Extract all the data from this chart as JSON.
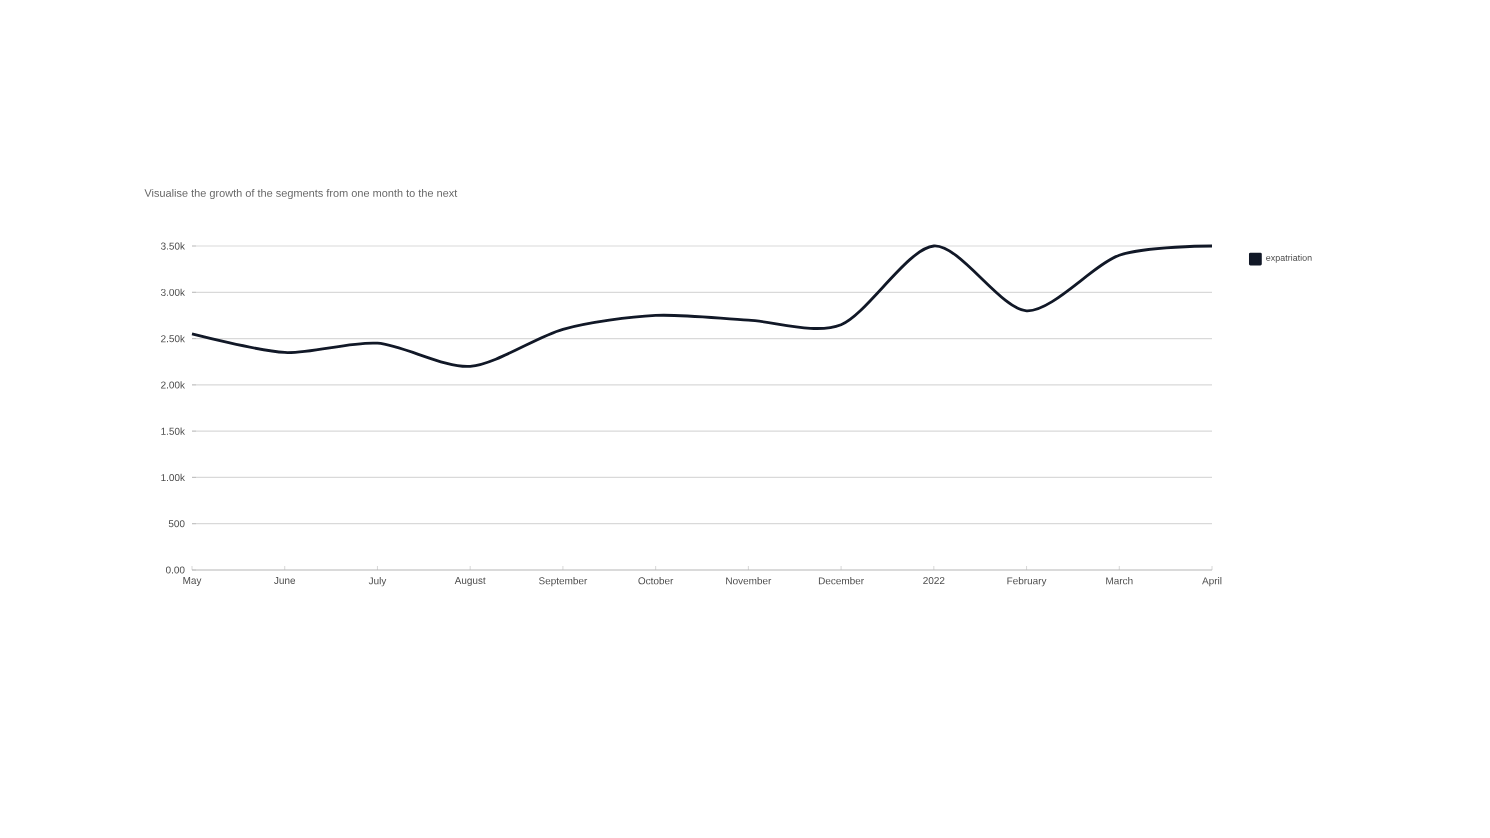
{
  "chart_data": {
    "type": "line",
    "title": "Visualise the growth of the segments from one month to the next",
    "categories": [
      "May",
      "June",
      "July",
      "August",
      "September",
      "October",
      "November",
      "December",
      "2022",
      "February",
      "March",
      "April"
    ],
    "series": [
      {
        "name": "expatriation",
        "color": "#111827",
        "values": [
          2550,
          2350,
          2450,
          2200,
          2600,
          2750,
          2700,
          2650,
          3500,
          2800,
          3400,
          3500
        ]
      }
    ],
    "ylim": [
      0,
      3500
    ],
    "yticks": [
      {
        "value": 0,
        "label": "0.00"
      },
      500,
      {
        "value": 1000,
        "label": "1.00k"
      },
      {
        "value": 1500,
        "label": "1.50k"
      },
      {
        "value": 2000,
        "label": "2.00k"
      },
      {
        "value": 2500,
        "label": "2.50k"
      },
      {
        "value": 3000,
        "label": "3.00k"
      },
      {
        "value": 3500,
        "label": "3.50k"
      }
    ],
    "grid": "y",
    "legend": "top right",
    "marker": "none",
    "line_style": "solid"
  }
}
